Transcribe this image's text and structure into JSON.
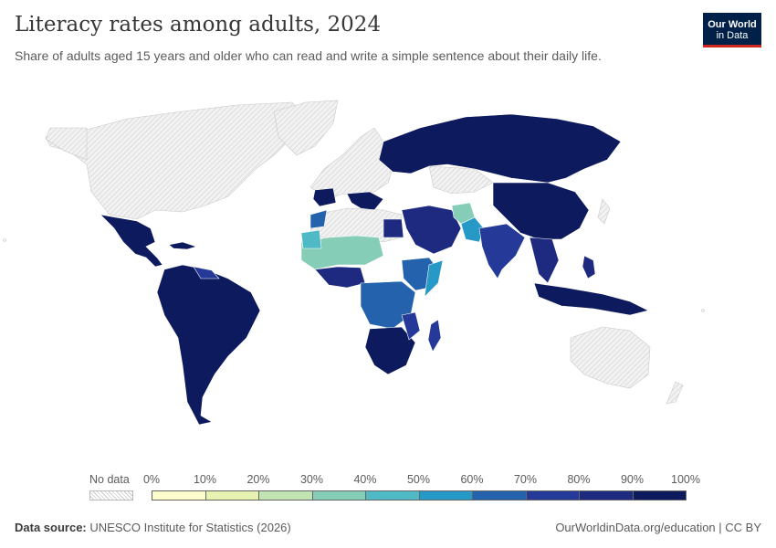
{
  "header": {
    "title": "Literacy rates among adults, 2024",
    "subtitle": "Share of adults aged 15 years and older who can read and write a simple sentence about their daily life."
  },
  "logo": {
    "line1": "Our World",
    "line2": "in Data"
  },
  "legend": {
    "no_data_label": "No data",
    "ticks": [
      "0%",
      "10%",
      "20%",
      "30%",
      "40%",
      "50%",
      "60%",
      "70%",
      "80%",
      "90%",
      "100%"
    ],
    "colors": [
      "#fdfccc",
      "#e6f3b0",
      "#c2e3b3",
      "#86cdb8",
      "#4fb9c5",
      "#2799c7",
      "#2462ad",
      "#253a98",
      "#1d2a80",
      "#0d1a5e"
    ],
    "no_data_color": "#e5e5e5"
  },
  "footer": {
    "source_label": "Data source:",
    "source_text": "UNESCO Institute for Statistics (2026)",
    "link_text": "OurWorldinData.org/education | CC BY"
  }
}
